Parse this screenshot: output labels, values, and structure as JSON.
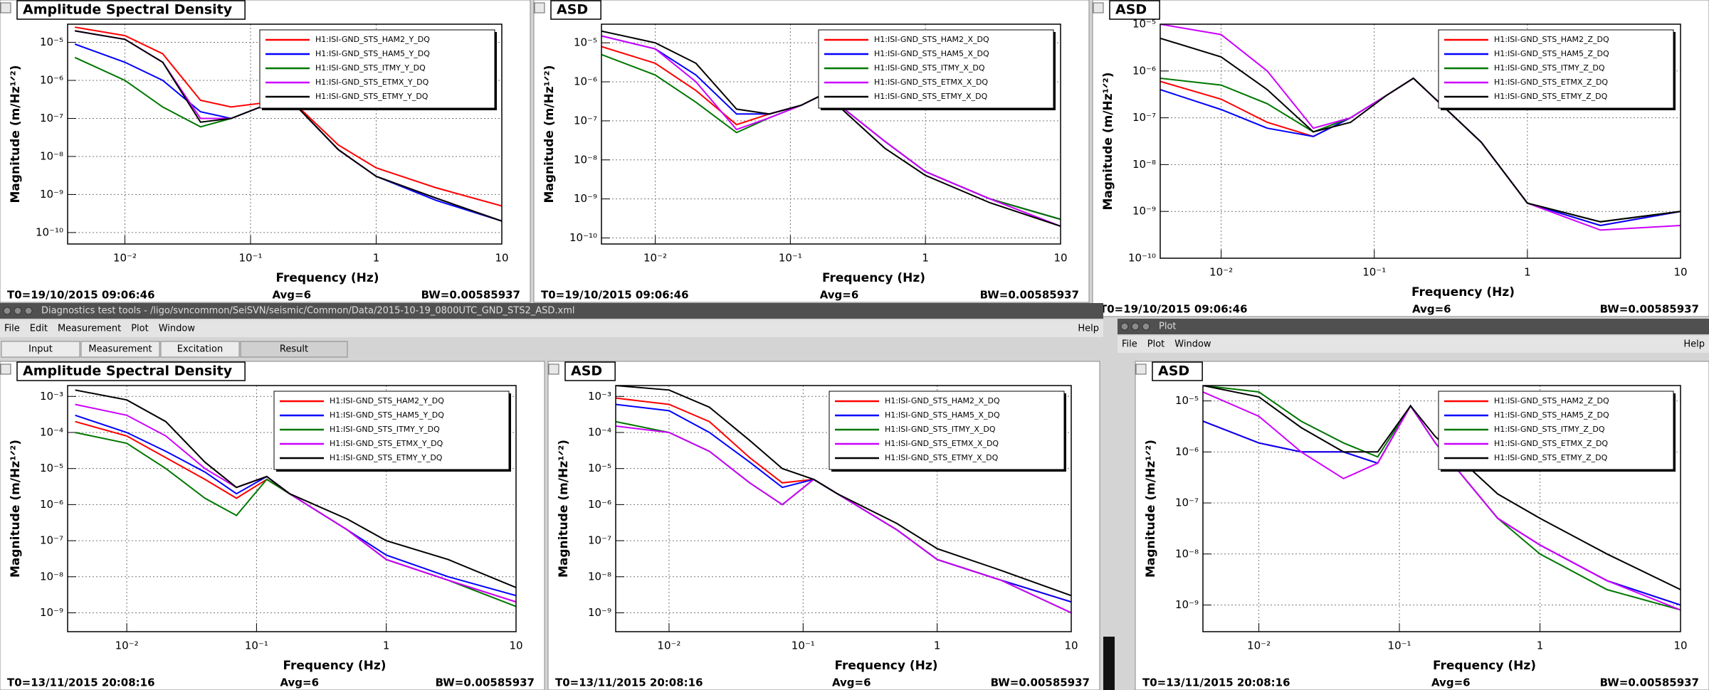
{
  "window": {
    "title": "Diagnostics test tools - /ligo/svncommon/SeiSVN/seismic/Common/Data/2015-10-19_0800UTC_GND_STS2_ASD.xml",
    "menu": [
      "File",
      "Edit",
      "Measurement",
      "Plot",
      "Window"
    ],
    "help": "Help",
    "tabs": [
      "Input",
      "Measurement",
      "Excitation",
      "Result"
    ]
  },
  "plot_window": {
    "title": "Plot",
    "menu": [
      "File",
      "Plot",
      "Window"
    ],
    "help": "Help"
  },
  "chart_data": [
    {
      "type": "line",
      "title": "Amplitude Spectral Density",
      "xlabel": "Frequency (Hz)",
      "ylabel": "Magnitude (m/Hz¹ᐟ²)",
      "xscale": "log",
      "yscale": "log",
      "grid": true,
      "legend": "upper right",
      "xlim": [
        0.0035,
        10
      ],
      "ylim": [
        5e-11,
        3e-05
      ],
      "xticks": [
        {
          "value": 0.01,
          "label": "10⁻²"
        },
        {
          "value": 0.1,
          "label": "10⁻¹"
        },
        1,
        10
      ],
      "yticks": [
        {
          "value": 1e-10,
          "label": "10⁻¹⁰"
        },
        {
          "value": 1e-09,
          "label": "10⁻⁹"
        },
        {
          "value": 1e-08,
          "label": "10⁻⁸"
        },
        {
          "value": 1e-07,
          "label": "10⁻⁷"
        },
        {
          "value": 1e-06,
          "label": "10⁻⁶"
        },
        {
          "value": 1e-05,
          "label": "10⁻⁵"
        }
      ],
      "x": [
        0.004,
        0.01,
        0.02,
        0.04,
        0.07,
        0.12,
        0.18,
        0.5,
        1,
        3,
        10
      ],
      "series": [
        {
          "name": "H1:ISI-GND_STS_HAM2_Y_DQ",
          "color": "#ff0000",
          "values": [
            2.5e-05,
            1.5e-05,
            5e-06,
            3e-07,
            2e-07,
            2.5e-07,
            5e-07,
            2e-08,
            5e-09,
            1.5e-09,
            5e-10
          ]
        },
        {
          "name": "H1:ISI-GND_STS_HAM5_Y_DQ",
          "color": "#0000ff",
          "values": [
            9e-06,
            3e-06,
            1e-06,
            1.5e-07,
            1e-07,
            2e-07,
            5e-07,
            1.5e-08,
            3e-09,
            7e-10,
            2e-10
          ]
        },
        {
          "name": "H1:ISI-GND_STS_ITMY_Y_DQ",
          "color": "#007700",
          "values": [
            4e-06,
            1e-06,
            2e-07,
            6e-08,
            1e-07,
            2e-07,
            5e-07,
            1.5e-08,
            3e-09,
            8e-10,
            2e-10
          ]
        },
        {
          "name": "H1:ISI-GND_STS_ETMX_Y_DQ",
          "color": "#cc00ff",
          "values": [
            2e-05,
            1.2e-05,
            3e-06,
            1e-07,
            1e-07,
            2e-07,
            5e-07,
            1.5e-08,
            3e-09,
            8e-10,
            2e-10
          ]
        },
        {
          "name": "H1:ISI-GND_STS_ETMY_Y_DQ",
          "color": "#000000",
          "values": [
            2e-05,
            1.2e-05,
            3e-06,
            8e-08,
            1e-07,
            2e-07,
            5e-07,
            1.5e-08,
            3e-09,
            8e-10,
            2e-10
          ]
        }
      ],
      "t0": "T0=19/10/2015 09:06:46",
      "avg": "Avg=6",
      "bw": "BW=0.00585937"
    },
    {
      "type": "line",
      "title": "ASD",
      "xlabel": "Frequency (Hz)",
      "ylabel": "Magnitude (m/Hz¹ᐟ²)",
      "xscale": "log",
      "yscale": "log",
      "grid": true,
      "legend": "upper right",
      "xlim": [
        0.004,
        10
      ],
      "ylim": [
        7e-11,
        3e-05
      ],
      "xticks": [
        {
          "value": 0.01,
          "label": "10⁻²"
        },
        {
          "value": 0.1,
          "label": "10⁻¹"
        },
        1,
        10
      ],
      "yticks": [
        {
          "value": 1e-10,
          "label": "10⁻¹⁰"
        },
        {
          "value": 1e-09,
          "label": "10⁻⁹"
        },
        {
          "value": 1e-08,
          "label": "10⁻⁸"
        },
        {
          "value": 1e-07,
          "label": "10⁻⁷"
        },
        {
          "value": 1e-06,
          "label": "10⁻⁶"
        },
        {
          "value": 1e-05,
          "label": "10⁻⁵"
        }
      ],
      "x": [
        0.004,
        0.01,
        0.02,
        0.04,
        0.07,
        0.12,
        0.18,
        0.5,
        1,
        3,
        10
      ],
      "series": [
        {
          "name": "H1:ISI-GND_STS_HAM2_X_DQ",
          "color": "#ff0000",
          "values": [
            8e-06,
            3e-06,
            6e-07,
            8e-08,
            1.5e-07,
            2.5e-07,
            5e-07,
            3e-08,
            5e-09,
            1e-09,
            3e-10
          ]
        },
        {
          "name": "H1:ISI-GND_STS_HAM5_X_DQ",
          "color": "#0000ff",
          "values": [
            1.5e-05,
            7e-06,
            1.5e-06,
            1.5e-07,
            1.5e-07,
            2.5e-07,
            5e-07,
            3e-08,
            5e-09,
            1e-09,
            3e-10
          ]
        },
        {
          "name": "H1:ISI-GND_STS_ITMY_X_DQ",
          "color": "#007700",
          "values": [
            5e-06,
            1.5e-06,
            3e-07,
            5e-08,
            1.2e-07,
            2.5e-07,
            5e-07,
            3e-08,
            5e-09,
            1e-09,
            3e-10
          ]
        },
        {
          "name": "H1:ISI-GND_STS_ETMX_X_DQ",
          "color": "#cc00ff",
          "values": [
            1.5e-05,
            7e-06,
            1e-06,
            6e-08,
            1.2e-07,
            2.5e-07,
            5e-07,
            3e-08,
            5e-09,
            1e-09,
            2e-10
          ]
        },
        {
          "name": "H1:ISI-GND_STS_ETMY_X_DQ",
          "color": "#000000",
          "values": [
            2e-05,
            1e-05,
            3e-06,
            2e-07,
            1.5e-07,
            2.5e-07,
            5e-07,
            2e-08,
            4e-09,
            8e-10,
            2e-10
          ]
        }
      ],
      "t0": "T0=19/10/2015 09:06:46",
      "avg": "Avg=6",
      "bw": "BW=0.00585937"
    },
    {
      "type": "line",
      "title": "ASD",
      "xlabel": "Frequency (Hz)",
      "ylabel": "Magnitude (m/Hz¹ᐟ²)",
      "xscale": "log",
      "yscale": "log",
      "grid": true,
      "legend": "upper right",
      "xlim": [
        0.004,
        10
      ],
      "ylim": [
        1e-10,
        1e-05
      ],
      "xticks": [
        {
          "value": 0.01,
          "label": "10⁻²"
        },
        {
          "value": 0.1,
          "label": "10⁻¹"
        },
        1,
        10
      ],
      "yticks": [
        {
          "value": 1e-10,
          "label": "10⁻¹⁰"
        },
        {
          "value": 1e-09,
          "label": "10⁻⁹"
        },
        {
          "value": 1e-08,
          "label": "10⁻⁸"
        },
        {
          "value": 1e-07,
          "label": "10⁻⁷"
        },
        {
          "value": 1e-06,
          "label": "10⁻⁶"
        },
        {
          "value": 1e-05,
          "label": "10⁻⁵"
        }
      ],
      "x": [
        0.004,
        0.01,
        0.02,
        0.04,
        0.07,
        0.12,
        0.18,
        0.5,
        1,
        3,
        10
      ],
      "series": [
        {
          "name": "H1:ISI-GND_STS_HAM2_Z_DQ",
          "color": "#ff0000",
          "values": [
            6e-07,
            2.5e-07,
            8e-08,
            4e-08,
            1e-07,
            3e-07,
            7e-07,
            3e-08,
            1.5e-09,
            5e-10,
            1e-09
          ]
        },
        {
          "name": "H1:ISI-GND_STS_HAM5_Z_DQ",
          "color": "#0000ff",
          "values": [
            4e-07,
            1.5e-07,
            6e-08,
            4e-08,
            1e-07,
            3e-07,
            7e-07,
            3e-08,
            1.5e-09,
            5e-10,
            1e-09
          ]
        },
        {
          "name": "H1:ISI-GND_STS_ITMY_Z_DQ",
          "color": "#007700",
          "values": [
            7e-07,
            5e-07,
            2e-07,
            5e-08,
            1e-07,
            3e-07,
            7e-07,
            3e-08,
            1.5e-09,
            6e-10,
            1e-09
          ]
        },
        {
          "name": "H1:ISI-GND_STS_ETMX_Z_DQ",
          "color": "#cc00ff",
          "values": [
            1e-05,
            6e-06,
            1e-06,
            6e-08,
            1e-07,
            3e-07,
            7e-07,
            3e-08,
            1.5e-09,
            4e-10,
            5e-10
          ]
        },
        {
          "name": "H1:ISI-GND_STS_ETMY_Z_DQ",
          "color": "#000000",
          "values": [
            5e-06,
            2e-06,
            4e-07,
            5e-08,
            8e-08,
            3e-07,
            7e-07,
            3e-08,
            1.5e-09,
            6e-10,
            1e-09
          ]
        }
      ],
      "t0": "T0=19/10/2015 09:06:46",
      "avg": "Avg=6",
      "bw": "BW=0.00585937"
    },
    {
      "type": "line",
      "title": "Amplitude Spectral Density",
      "xlabel": "Frequency (Hz)",
      "ylabel": "Magnitude (m/Hz¹ᐟ²)",
      "xscale": "log",
      "yscale": "log",
      "grid": true,
      "legend": "upper right",
      "xlim": [
        0.0035,
        10
      ],
      "ylim": [
        3e-10,
        0.002
      ],
      "xticks": [
        {
          "value": 0.01,
          "label": "10⁻²"
        },
        {
          "value": 0.1,
          "label": "10⁻¹"
        },
        1,
        10
      ],
      "yticks": [
        {
          "value": 1e-09,
          "label": "10⁻⁹"
        },
        {
          "value": 1e-08,
          "label": "10⁻⁸"
        },
        {
          "value": 1e-07,
          "label": "10⁻⁷"
        },
        {
          "value": 1e-06,
          "label": "10⁻⁶"
        },
        {
          "value": 1e-05,
          "label": "10⁻⁵"
        },
        {
          "value": 0.0001,
          "label": "10⁻⁴"
        },
        {
          "value": 0.001,
          "label": "10⁻³"
        }
      ],
      "x": [
        0.004,
        0.01,
        0.02,
        0.04,
        0.07,
        0.12,
        0.18,
        0.5,
        1,
        3,
        10
      ],
      "series": [
        {
          "name": "H1:ISI-GND_STS_HAM2_Y_DQ",
          "color": "#ff0000",
          "values": [
            0.0002,
            8e-05,
            2e-05,
            5e-06,
            1.5e-06,
            5e-06,
            2e-06,
            2e-07,
            3e-08,
            8e-09,
            2e-09
          ]
        },
        {
          "name": "H1:ISI-GND_STS_HAM5_Y_DQ",
          "color": "#0000ff",
          "values": [
            0.0003,
            0.0001,
            3e-05,
            8e-06,
            2e-06,
            6e-06,
            2e-06,
            2e-07,
            4e-08,
            1e-08,
            3e-09
          ]
        },
        {
          "name": "H1:ISI-GND_STS_ITMY_Y_DQ",
          "color": "#007700",
          "values": [
            0.0001,
            5e-05,
            1e-05,
            1.5e-06,
            5e-07,
            5e-06,
            2e-06,
            2e-07,
            3e-08,
            8e-09,
            1.5e-09
          ]
        },
        {
          "name": "H1:ISI-GND_STS_ETMX_Y_DQ",
          "color": "#cc00ff",
          "values": [
            0.0006,
            0.0003,
            8e-05,
            1e-05,
            3e-06,
            6e-06,
            2e-06,
            2e-07,
            3e-08,
            8e-09,
            2e-09
          ]
        },
        {
          "name": "H1:ISI-GND_STS_ETMY_Y_DQ",
          "color": "#000000",
          "values": [
            0.0015,
            0.0008,
            0.0002,
            1.5e-05,
            3e-06,
            6e-06,
            2e-06,
            4e-07,
            1e-07,
            3e-08,
            5e-09
          ]
        }
      ],
      "t0": "T0=13/11/2015 20:08:16",
      "avg": "Avg=6",
      "bw": "BW=0.00585937"
    },
    {
      "type": "line",
      "title": "ASD",
      "xlabel": "Frequency (Hz)",
      "ylabel": "Magnitude (m/Hz¹ᐟ²)",
      "xscale": "log",
      "yscale": "log",
      "grid": true,
      "legend": "upper right",
      "xlim": [
        0.004,
        10
      ],
      "ylim": [
        3e-10,
        0.002
      ],
      "xticks": [
        {
          "value": 0.01,
          "label": "10⁻²"
        },
        {
          "value": 0.1,
          "label": "10⁻¹"
        },
        1,
        10
      ],
      "yticks": [
        {
          "value": 1e-09,
          "label": "10⁻⁹"
        },
        {
          "value": 1e-08,
          "label": "10⁻⁸"
        },
        {
          "value": 1e-07,
          "label": "10⁻⁷"
        },
        {
          "value": 1e-06,
          "label": "10⁻⁶"
        },
        {
          "value": 1e-05,
          "label": "10⁻⁵"
        },
        {
          "value": 0.0001,
          "label": "10⁻⁴"
        },
        {
          "value": 0.001,
          "label": "10⁻³"
        }
      ],
      "x": [
        0.004,
        0.01,
        0.02,
        0.04,
        0.07,
        0.12,
        0.18,
        0.5,
        1,
        3,
        10
      ],
      "series": [
        {
          "name": "H1:ISI-GND_STS_HAM2_X_DQ",
          "color": "#ff0000",
          "values": [
            0.0009,
            0.0006,
            0.0002,
            2e-05,
            4e-06,
            5e-06,
            2e-06,
            2e-07,
            3e-08,
            8e-09,
            2e-09
          ]
        },
        {
          "name": "H1:ISI-GND_STS_HAM5_X_DQ",
          "color": "#0000ff",
          "values": [
            0.0006,
            0.0004,
            0.0001,
            1.5e-05,
            3e-06,
            5e-06,
            2e-06,
            2e-07,
            3e-08,
            8e-09,
            2e-09
          ]
        },
        {
          "name": "H1:ISI-GND_STS_ITMY_X_DQ",
          "color": "#007700",
          "values": [
            0.0002,
            0.0001,
            3e-05,
            4e-06,
            1e-06,
            5e-06,
            2e-06,
            2e-07,
            3e-08,
            8e-09,
            1e-09
          ]
        },
        {
          "name": "H1:ISI-GND_STS_ETMX_X_DQ",
          "color": "#cc00ff",
          "values": [
            0.00015,
            0.0001,
            3e-05,
            4e-06,
            1e-06,
            5e-06,
            2e-06,
            2e-07,
            3e-08,
            8e-09,
            1e-09
          ]
        },
        {
          "name": "H1:ISI-GND_STS_ETMY_X_DQ",
          "color": "#000000",
          "values": [
            0.002,
            0.0015,
            0.0005,
            6e-05,
            1e-05,
            5e-06,
            2e-06,
            3e-07,
            6e-08,
            1.5e-08,
            3e-09
          ]
        }
      ],
      "t0": "T0=13/11/2015 20:08:16",
      "avg": "Avg=6",
      "bw": "BW=0.00585937"
    },
    {
      "type": "line",
      "title": "ASD",
      "xlabel": "Frequency (Hz)",
      "ylabel": "Magnitude (m/Hz¹ᐟ²)",
      "xscale": "log",
      "yscale": "log",
      "grid": true,
      "legend": "upper right",
      "xlim": [
        0.004,
        10
      ],
      "ylim": [
        3e-10,
        2e-05
      ],
      "xticks": [
        {
          "value": 0.01,
          "label": "10⁻²"
        },
        {
          "value": 0.1,
          "label": "10⁻¹"
        },
        1,
        10
      ],
      "yticks": [
        {
          "value": 1e-09,
          "label": "10⁻⁹"
        },
        {
          "value": 1e-08,
          "label": "10⁻⁸"
        },
        {
          "value": 1e-07,
          "label": "10⁻⁷"
        },
        {
          "value": 1e-06,
          "label": "10⁻⁶"
        },
        {
          "value": 1e-05,
          "label": "10⁻⁵"
        }
      ],
      "x": [
        0.004,
        0.01,
        0.02,
        0.04,
        0.07,
        0.12,
        0.18,
        0.5,
        1,
        3,
        10
      ],
      "series": [
        {
          "name": "H1:ISI-GND_STS_HAM2_Z_DQ",
          "color": "#ff0000",
          "values": [
            4e-06,
            1.5e-06,
            1e-06,
            1e-06,
            6e-07,
            8e-06,
            1.5e-06,
            5e-08,
            1.5e-08,
            3e-09,
            1e-09
          ]
        },
        {
          "name": "H1:ISI-GND_STS_HAM5_Z_DQ",
          "color": "#0000ff",
          "values": [
            4e-06,
            1.5e-06,
            1e-06,
            1e-06,
            6e-07,
            8e-06,
            1.5e-06,
            5e-08,
            1.5e-08,
            3e-09,
            1e-09
          ]
        },
        {
          "name": "H1:ISI-GND_STS_ITMY_Z_DQ",
          "color": "#007700",
          "values": [
            2e-05,
            1.5e-05,
            4e-06,
            1.5e-06,
            8e-07,
            8e-06,
            1.5e-06,
            5e-08,
            1e-08,
            2e-09,
            8e-10
          ]
        },
        {
          "name": "H1:ISI-GND_STS_ETMX_Z_DQ",
          "color": "#cc00ff",
          "values": [
            1.5e-05,
            5e-06,
            1e-06,
            3e-07,
            6e-07,
            8e-06,
            1.5e-06,
            5e-08,
            1.5e-08,
            3e-09,
            8e-10
          ]
        },
        {
          "name": "H1:ISI-GND_STS_ETMY_Z_DQ",
          "color": "#000000",
          "values": [
            2e-05,
            1.2e-05,
            3e-06,
            1e-06,
            1e-06,
            8e-06,
            2e-06,
            1.5e-07,
            5e-08,
            1e-08,
            2e-09
          ]
        }
      ],
      "t0": "T0=13/11/2015 20:08:16",
      "avg": "Avg=6",
      "bw": "BW=0.00585937"
    }
  ]
}
